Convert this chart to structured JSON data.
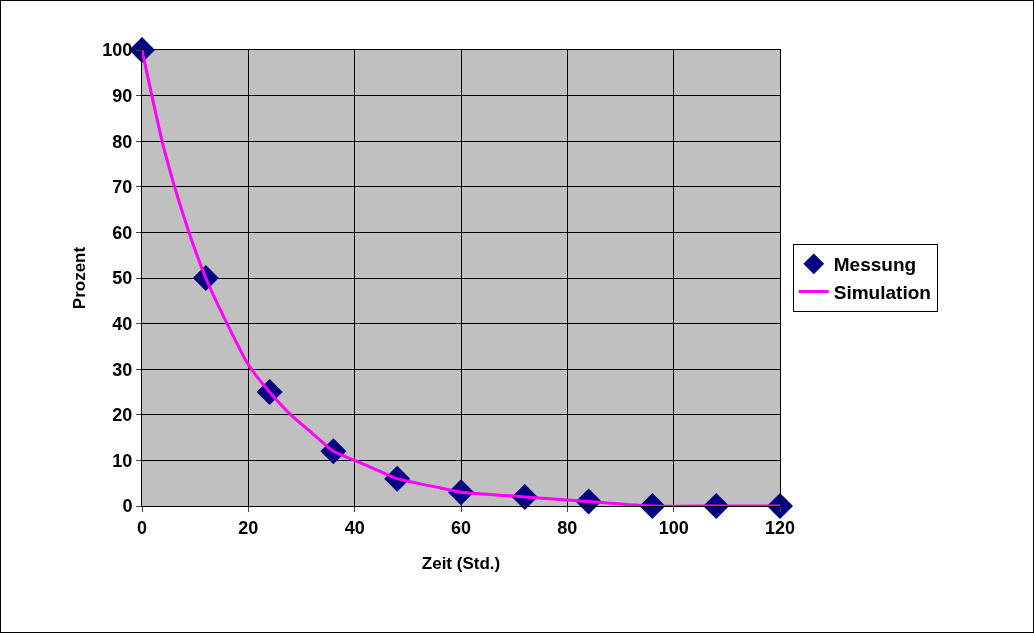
{
  "chart_data": {
    "type": "scatter",
    "xlabel": "Zeit (Std.)",
    "ylabel": "Prozent",
    "xlim": [
      0,
      120
    ],
    "xticks": [
      0,
      20,
      40,
      60,
      80,
      100,
      120
    ],
    "ylim": [
      0,
      100
    ],
    "yticks": [
      0,
      10,
      20,
      30,
      40,
      50,
      60,
      70,
      80,
      90,
      100
    ],
    "grid": true,
    "legend": "right",
    "series": [
      {
        "name": "Messung",
        "marker": "diamond",
        "color": "#000080",
        "x": [
          0,
          12,
          24,
          36,
          48,
          60,
          72,
          84,
          96,
          108,
          120
        ],
        "values": [
          100,
          50,
          25,
          12,
          6,
          3,
          2,
          1,
          0,
          0,
          0
        ]
      },
      {
        "name": "Simulation",
        "type": "line",
        "marker": "none",
        "line_style": "solid",
        "color": "#ff00ff",
        "x": [
          0,
          4,
          8,
          12,
          16,
          20,
          24,
          28,
          32,
          36,
          40,
          44,
          48,
          56,
          60,
          72,
          84,
          96,
          108,
          120
        ],
        "values": [
          100,
          79,
          63,
          50,
          40,
          31,
          25,
          20,
          16,
          12,
          10,
          8,
          6,
          4,
          3,
          2,
          1,
          0,
          0,
          0
        ]
      }
    ]
  }
}
